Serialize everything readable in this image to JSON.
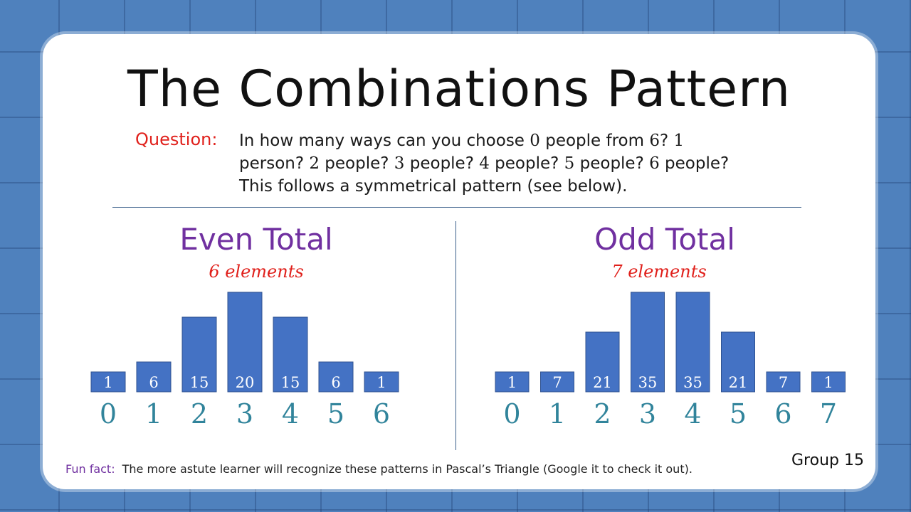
{
  "title": "The Combinations Pattern",
  "question": {
    "label": "Question:",
    "line1": [
      {
        "t": "In how many ways can you choose ",
        "num": false
      },
      {
        "t": "0",
        "num": true
      },
      {
        "t": " people from ",
        "num": false
      },
      {
        "t": "6",
        "num": true
      },
      {
        "t": "? ",
        "num": false
      },
      {
        "t": "1",
        "num": true
      }
    ],
    "line2": [
      {
        "t": "person? ",
        "num": false
      },
      {
        "t": "2",
        "num": true
      },
      {
        "t": " people? ",
        "num": false
      },
      {
        "t": "3",
        "num": true
      },
      {
        "t": " people? ",
        "num": false
      },
      {
        "t": "4",
        "num": true
      },
      {
        "t": " people? ",
        "num": false
      },
      {
        "t": "5",
        "num": true
      },
      {
        "t": " people? ",
        "num": false
      },
      {
        "t": "6",
        "num": true
      },
      {
        "t": " people?",
        "num": false
      }
    ],
    "line3": "This follows a symmetrical pattern (see below)."
  },
  "even": {
    "title": "Even Total",
    "subtitle": "6 elements"
  },
  "odd": {
    "title": "Odd Total",
    "subtitle": "7 elements"
  },
  "chart_data": [
    {
      "type": "bar",
      "categories": [
        "0",
        "1",
        "2",
        "3",
        "4",
        "5",
        "6"
      ],
      "values": [
        1,
        6,
        15,
        20,
        15,
        6,
        1
      ],
      "title": "Even Total"
    },
    {
      "type": "bar",
      "categories": [
        "0",
        "1",
        "2",
        "3",
        "4",
        "5",
        "6",
        "7"
      ],
      "values": [
        1,
        7,
        21,
        35,
        35,
        21,
        7,
        1
      ],
      "title": "Odd Total"
    }
  ],
  "colors": {
    "bar": "#4472c4",
    "bar_border": "#2f528f",
    "bar_label": "#ffffff",
    "category": "#31849b"
  },
  "fun_fact": {
    "label": "Fun fact:",
    "text": "The more astute learner will recognize these patterns in Pascal’s Triangle (Google it to check it out)."
  },
  "group": "Group 15"
}
